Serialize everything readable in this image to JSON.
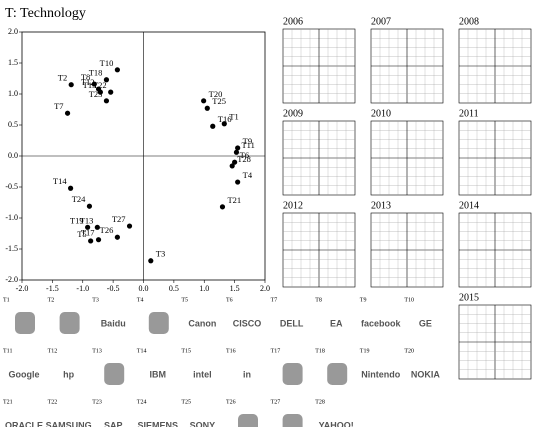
{
  "chart_data": {
    "type": "scatter",
    "title": "T: Technology",
    "xlim": [
      -2,
      2
    ],
    "ylim": [
      -2,
      2
    ],
    "xticks": [
      {
        "value": -2,
        "label": "-2.0"
      },
      {
        "value": -1.5,
        "label": "-1.5"
      },
      {
        "value": -1,
        "label": "-1.0"
      },
      {
        "value": -0.5,
        "label": "-0.5"
      },
      {
        "value": 0,
        "label": "0.0"
      },
      {
        "value": 0.5,
        "label": "0.5"
      },
      {
        "value": 1,
        "label": "1.0"
      },
      {
        "value": 1.5,
        "label": "1.5"
      },
      {
        "value": 2,
        "label": "2.0"
      }
    ],
    "yticks": [
      {
        "value": -2,
        "label": "-2.0"
      },
      {
        "value": -1.5,
        "label": "-1.5"
      },
      {
        "value": -1,
        "label": "-1.0"
      },
      {
        "value": -0.5,
        "label": "-0.5"
      },
      {
        "value": 0,
        "label": "0.0"
      },
      {
        "value": 0.5,
        "label": "0.5"
      },
      {
        "value": 1,
        "label": "1.0"
      },
      {
        "value": 1.5,
        "label": "1.5"
      },
      {
        "value": 2,
        "label": "2.0"
      }
    ],
    "labels": [
      "T1",
      "T2",
      "T3",
      "T4",
      "T5",
      "T6",
      "T7",
      "T8",
      "T9",
      "T10",
      "T11",
      "T12",
      "T13",
      "T14",
      "T15",
      "T16",
      "T17",
      "T18",
      "T19",
      "T20",
      "T21",
      "T22",
      "T23",
      "T24",
      "T25",
      "T26",
      "T27",
      "T28"
    ],
    "x": [
      1.33,
      -1.19,
      0.12,
      1.55,
      -0.87,
      1.5,
      -1.25,
      -0.81,
      1.55,
      -0.43,
      1.53,
      -0.74,
      -0.76,
      -1.2,
      -0.71,
      1.14,
      -0.74,
      -0.61,
      -0.92,
      0.99,
      1.3,
      -0.54,
      -0.61,
      -0.89,
      1.05,
      -0.43,
      -0.23,
      1.46
    ],
    "y": [
      0.52,
      1.15,
      -1.69,
      -0.42,
      -1.37,
      -0.1,
      0.69,
      1.16,
      0.13,
      1.39,
      0.06,
      1.08,
      -1.15,
      -0.52,
      1.03,
      0.48,
      -1.35,
      1.23,
      -1.15,
      0.89,
      -0.82,
      1.03,
      0.89,
      -0.81,
      0.77,
      -1.31,
      -1.13,
      -0.16
    ],
    "color": "#000000"
  },
  "years": [
    "2006",
    "2007",
    "2008",
    "2009",
    "2010",
    "2011",
    "2012",
    "2013",
    "2014",
    "2015"
  ],
  "logos": [
    {
      "id": "T1"
    },
    {
      "id": "T2"
    },
    {
      "id": "T3",
      "text": "Baidu"
    },
    {
      "id": "T4"
    },
    {
      "id": "T5",
      "text": "Canon"
    },
    {
      "id": "T6",
      "text": "CISCO"
    },
    {
      "id": "T7",
      "text": "DELL"
    },
    {
      "id": "T8",
      "text": "EA"
    },
    {
      "id": "T9",
      "text": "facebook"
    },
    {
      "id": "T10",
      "text": "GE"
    },
    {
      "id": "T11",
      "text": "Google"
    },
    {
      "id": "T12",
      "text": "hp"
    },
    {
      "id": "T13"
    },
    {
      "id": "T14",
      "text": "IBM"
    },
    {
      "id": "T15",
      "text": "intel"
    },
    {
      "id": "T16",
      "text": "in"
    },
    {
      "id": "T17"
    },
    {
      "id": "T18"
    },
    {
      "id": "T19",
      "text": "Nintendo"
    },
    {
      "id": "T20",
      "text": "NOKIA"
    },
    {
      "id": "T21",
      "text": "ORACLE"
    },
    {
      "id": "T22",
      "text": "SAMSUNG"
    },
    {
      "id": "T23",
      "text": "SAP"
    },
    {
      "id": "T24",
      "text": "SIEMENS"
    },
    {
      "id": "T25",
      "text": "SONY"
    },
    {
      "id": "T26"
    },
    {
      "id": "T27"
    },
    {
      "id": "T28",
      "text": "YAHOO!"
    }
  ]
}
